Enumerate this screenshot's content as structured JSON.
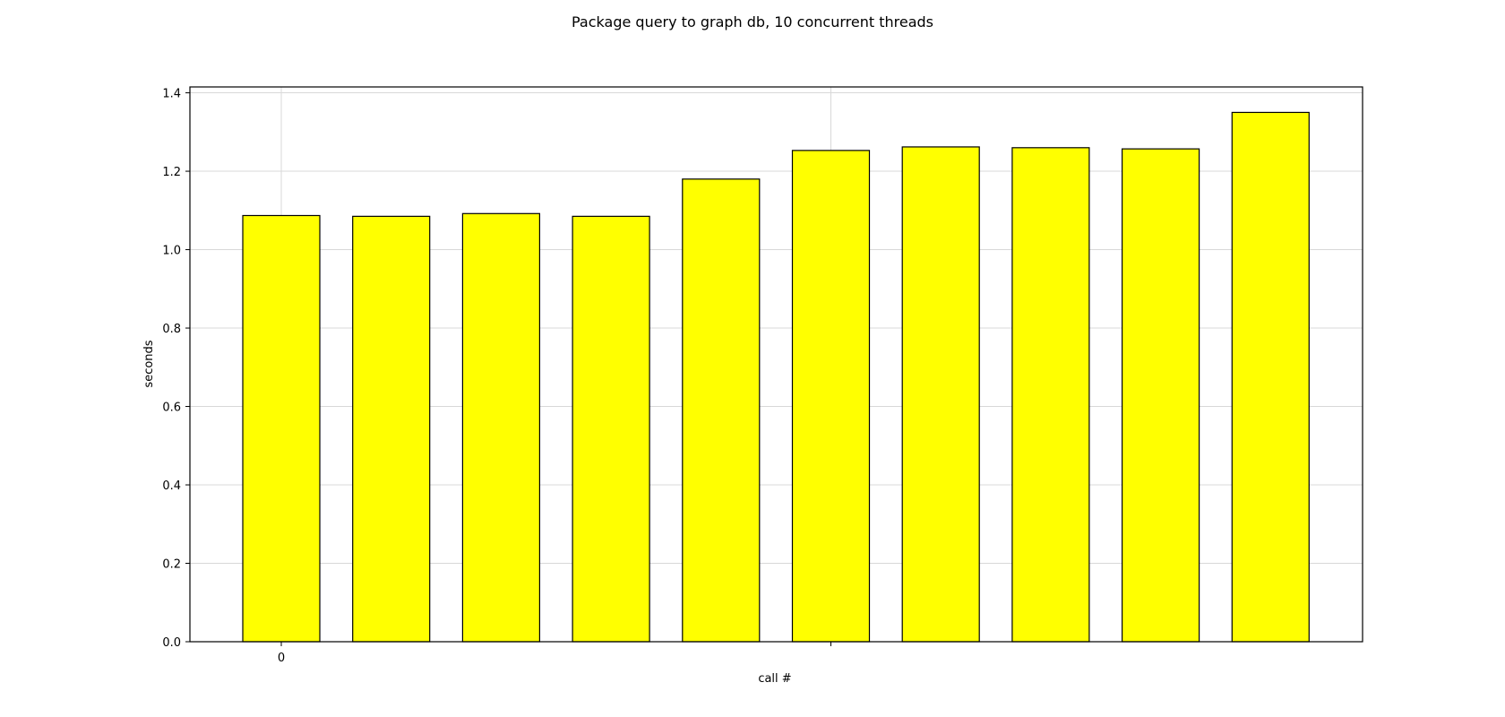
{
  "chart_data": {
    "type": "bar",
    "title": "Package query to graph db, 10 concurrent threads",
    "xlabel": "call #",
    "ylabel": "seconds",
    "x_tick_labels": [
      "0",
      ""
    ],
    "y_ticks": [
      0.0,
      0.2,
      0.4,
      0.6,
      0.8,
      1.0,
      1.2,
      1.4
    ],
    "y_tick_labels": [
      "0.0",
      "0.2",
      "0.4",
      "0.6",
      "0.8",
      "1.0",
      "1.2",
      "1.4"
    ],
    "ylim": [
      0,
      1.415
    ],
    "grid": true,
    "values": [
      1.087,
      1.085,
      1.092,
      1.085,
      1.18,
      1.253,
      1.262,
      1.26,
      1.257,
      1.35
    ],
    "bar_color": "#ffff00",
    "edge_color": "#000000"
  }
}
